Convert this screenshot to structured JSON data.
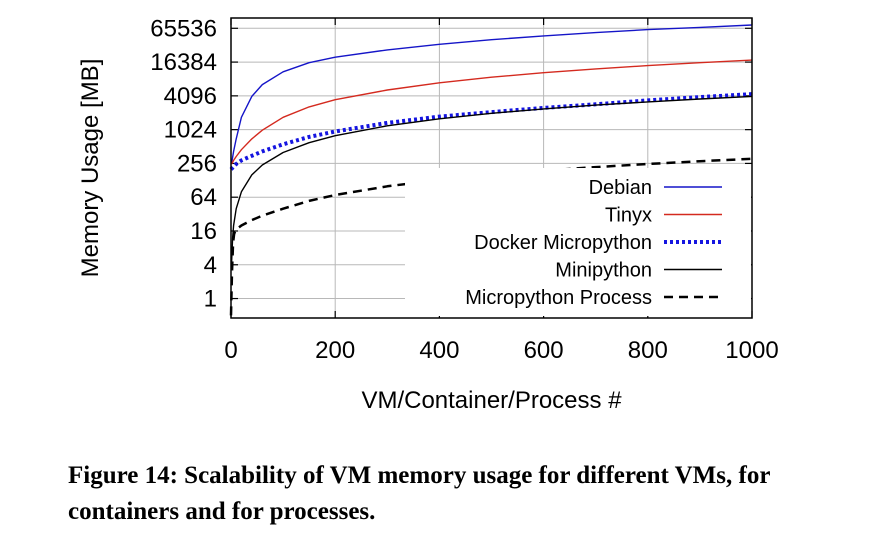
{
  "chart_data": {
    "type": "line",
    "title": "",
    "xlabel": "VM/Container/Process #",
    "ylabel": "Memory Usage [MB]",
    "xlim": [
      0,
      1000
    ],
    "ylim": [
      0.45,
      100000
    ],
    "y_scale": "log2",
    "x_ticks": [
      0,
      200,
      400,
      600,
      800,
      1000
    ],
    "x_tick_labels": [
      "0",
      "200",
      "400",
      "600",
      "800",
      "1000"
    ],
    "y_ticks": [
      1,
      4,
      16,
      64,
      256,
      1024,
      4096,
      16384,
      65536
    ],
    "y_tick_labels": [
      "1",
      "4",
      "16",
      "64",
      "256",
      "1024",
      "4096",
      "16384",
      "65536"
    ],
    "grid": true,
    "legend_position": "bottom-right",
    "series": [
      {
        "name": "Debian",
        "color": "#1515c8",
        "dash": "solid",
        "x": [
          1,
          5,
          10,
          20,
          40,
          60,
          100,
          150,
          200,
          300,
          400,
          500,
          600,
          700,
          800,
          900,
          1000
        ],
        "y": [
          250,
          420,
          700,
          1700,
          4000,
          6500,
          11000,
          16000,
          20000,
          27000,
          34000,
          41000,
          48000,
          55000,
          62000,
          68000,
          75000
        ]
      },
      {
        "name": "Tinyx",
        "color": "#d42a1f",
        "dash": "solid",
        "x": [
          1,
          5,
          10,
          20,
          40,
          60,
          100,
          150,
          200,
          300,
          400,
          500,
          600,
          700,
          800,
          900,
          1000
        ],
        "y": [
          250,
          290,
          340,
          450,
          700,
          1000,
          1700,
          2600,
          3500,
          5200,
          7000,
          8800,
          10600,
          12400,
          14200,
          16000,
          17800
        ]
      },
      {
        "name": "Docker Micropython",
        "color": "#1515e0",
        "dash": "dotted",
        "x": [
          0,
          10,
          20,
          40,
          60,
          100,
          150,
          200,
          300,
          400,
          500,
          600,
          700,
          800,
          900,
          1000
        ],
        "y": [
          200,
          250,
          290,
          350,
          420,
          560,
          760,
          950,
          1350,
          1750,
          2100,
          2500,
          2900,
          3400,
          3900,
          4400
        ]
      },
      {
        "name": "Minipython",
        "color": "#000000",
        "dash": "solid",
        "x": [
          1,
          3,
          5,
          10,
          20,
          40,
          60,
          100,
          150,
          200,
          300,
          400,
          500,
          600,
          700,
          800,
          900,
          1000
        ],
        "y": [
          4,
          12,
          20,
          40,
          80,
          160,
          240,
          400,
          600,
          800,
          1200,
          1600,
          2000,
          2400,
          2800,
          3200,
          3600,
          4000
        ]
      },
      {
        "name": "Micropython Process",
        "color": "#000000",
        "dash": "dashed",
        "x": [
          0,
          2,
          4,
          6,
          8,
          10,
          20,
          40,
          60,
          100,
          150,
          200,
          300,
          400,
          500,
          600,
          700,
          800,
          900,
          1000
        ],
        "y": [
          0.5,
          3,
          10,
          14,
          16,
          17,
          20,
          25,
          30,
          40,
          55,
          70,
          100,
          130,
          160,
          190,
          220,
          250,
          280,
          310
        ]
      }
    ]
  },
  "caption": {
    "text": "Figure 14: Scalability of VM memory usage for different VMs, for containers and for processes."
  }
}
